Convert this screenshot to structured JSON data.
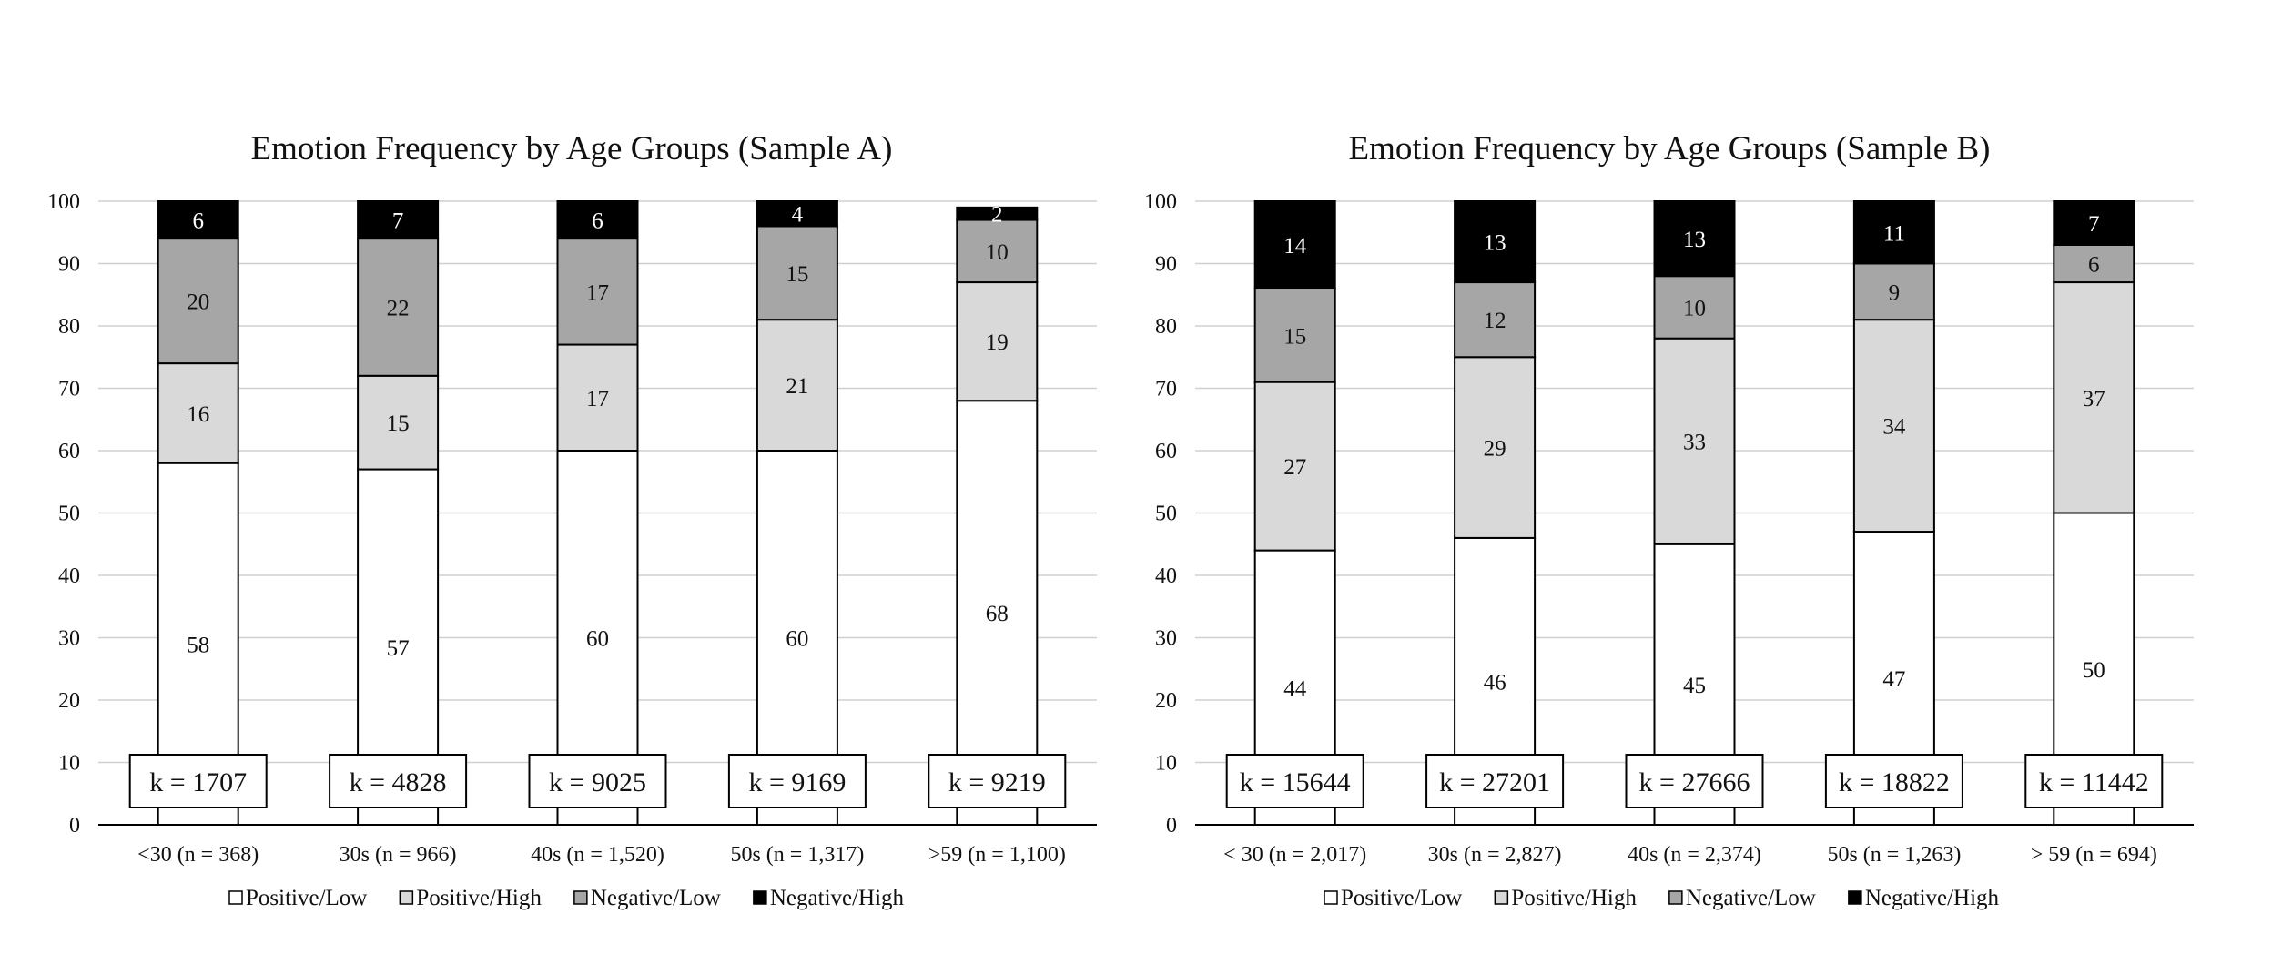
{
  "charts": [
    {
      "title": "Emotion Frequency by Age Groups (Sample A)",
      "chart_data": {
        "type": "bar",
        "stacked": true,
        "categories": [
          "<30 (n = 368)",
          "30s (n = 966)",
          "40s (n = 1,520)",
          "50s (n = 1,317)",
          ">59 (n = 1,100)"
        ],
        "series": [
          {
            "name": "Positive/Low",
            "values": [
              58,
              57,
              60,
              60,
              68
            ],
            "labels": [
              "58",
              "57",
              "60",
              "60",
              "68"
            ],
            "color": "#ffffff"
          },
          {
            "name": "Positive/High",
            "values": [
              16,
              15,
              17,
              21,
              19
            ],
            "labels": [
              "16",
              "15",
              "17",
              "21",
              "19"
            ],
            "color": "#d9d9d9"
          },
          {
            "name": "Negative/Low",
            "values": [
              20,
              22,
              17,
              15,
              10
            ],
            "labels": [
              "20",
              "22",
              "17",
              "15",
              "10"
            ],
            "color": "#a6a6a6"
          },
          {
            "name": "Negative/High",
            "values": [
              6,
              7,
              6,
              4,
              2
            ],
            "labels": [
              "6",
              "7",
              "6",
              "4",
              "2"
            ],
            "color": "#000000"
          }
        ],
        "annotations": [
          "k = 1707",
          "k = 4828",
          "k = 9025",
          "k = 9169",
          "k = 9219"
        ],
        "yticks": [
          "0",
          "10",
          "20",
          "30",
          "40",
          "50",
          "60",
          "70",
          "80",
          "90",
          "100"
        ],
        "ylim": [
          0,
          100
        ],
        "grid": true,
        "legend": "bottom"
      }
    },
    {
      "title": "Emotion Frequency by Age Groups (Sample B)",
      "chart_data": {
        "type": "bar",
        "stacked": true,
        "categories": [
          "< 30 (n = 2,017)",
          "30s (n = 2,827)",
          "40s (n = 2,374)",
          "50s (n = 1,263)",
          "> 59 (n = 694)"
        ],
        "series": [
          {
            "name": "Positive/Low",
            "values": [
              44,
              46,
              45,
              47,
              50
            ],
            "labels": [
              "44",
              "46",
              "45",
              "47",
              "50"
            ],
            "color": "#ffffff"
          },
          {
            "name": "Positive/High",
            "values": [
              27,
              29,
              33,
              34,
              37
            ],
            "labels": [
              "27",
              "29",
              "33",
              "34",
              "37"
            ],
            "color": "#d9d9d9"
          },
          {
            "name": "Negative/Low",
            "values": [
              15,
              12,
              10,
              9,
              6
            ],
            "labels": [
              "15",
              "12",
              "10",
              "9",
              "6"
            ],
            "color": "#a6a6a6"
          },
          {
            "name": "Negative/High",
            "values": [
              14,
              13,
              13,
              11,
              7
            ],
            "labels": [
              "14",
              "13",
              "13",
              "11",
              "7"
            ],
            "color": "#000000"
          }
        ],
        "annotations": [
          "k = 15644",
          "k = 27201",
          "k = 27666",
          "k = 18822",
          "k = 11442"
        ],
        "yticks": [
          "0",
          "10",
          "20",
          "30",
          "40",
          "50",
          "60",
          "70",
          "80",
          "90",
          "100"
        ],
        "ylim": [
          0,
          100
        ],
        "grid": true,
        "legend": "bottom"
      }
    }
  ]
}
